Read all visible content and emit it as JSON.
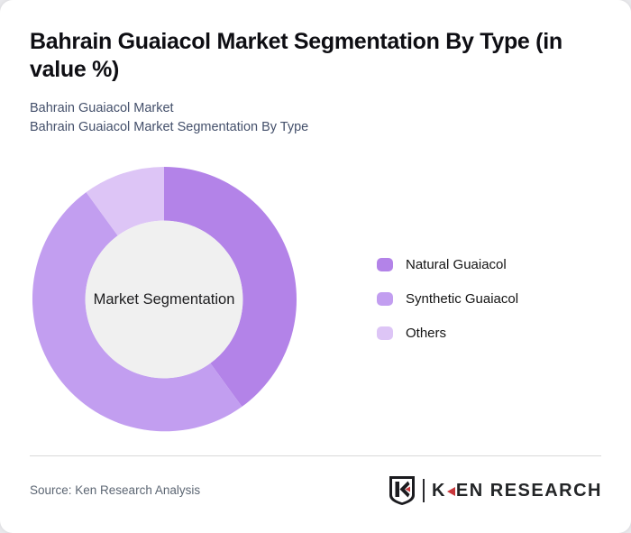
{
  "header": {
    "title": "Bahrain Guaiacol Market Segmentation By Type (in value %)",
    "subtitle_line1": "Bahrain Guaiacol Market",
    "subtitle_line2": "Bahrain Guaiacol Market Segmentation By Type"
  },
  "chart_data": {
    "type": "pie",
    "subtype": "donut",
    "title": "Bahrain Guaiacol Market Segmentation By Type (in value %)",
    "center_label": "Market Segmentation",
    "legend_position": "right",
    "start_angle_deg": 0,
    "direction": "clockwise",
    "values_unit": "percent",
    "data_labels_shown": false,
    "inner_hole_color": "#f0f0f0",
    "segments": [
      {
        "label": "Natural Guaiacol",
        "value": 40,
        "color": "#b383e8"
      },
      {
        "label": "Synthetic Guaiacol",
        "value": 50,
        "color": "#c29ef0"
      },
      {
        "label": "Others",
        "value": 10,
        "color": "#ddc5f6"
      }
    ]
  },
  "footer": {
    "source_text": "Source: Ken Research Analysis",
    "logo": {
      "brand": "KEN RESEARCH",
      "text_k": "K",
      "text_rest": "EN RESEARCH",
      "accent_red": "#c8373b"
    }
  }
}
